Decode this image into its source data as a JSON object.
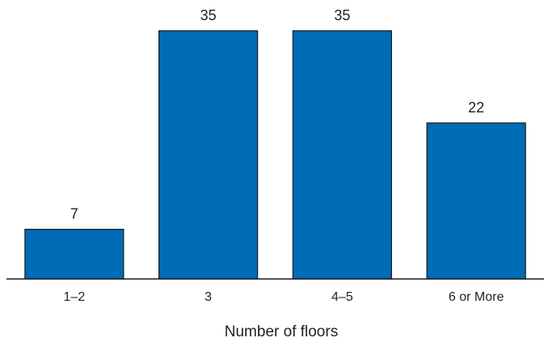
{
  "chart_data": {
    "type": "bar",
    "categories": [
      "1–2",
      "3",
      "4–5",
      "6 or More"
    ],
    "values": [
      7,
      35,
      35,
      22
    ],
    "title": "",
    "xlabel": "Number of floors",
    "ylabel": "",
    "ylim": [
      0,
      35
    ],
    "grid": false,
    "legend": "none",
    "data_labels": true,
    "bar_color": "#006bb6",
    "bar_edge_color": "#1a1a1a",
    "axis_color": "#1a1a1a"
  }
}
